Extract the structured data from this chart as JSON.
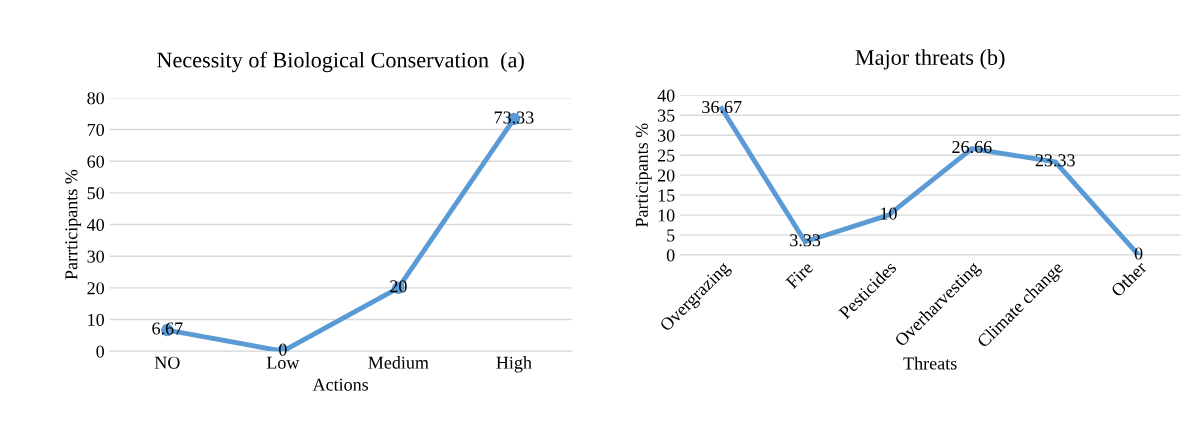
{
  "chart_data": [
    {
      "type": "line",
      "title": "Necessity of Biological Conservation  (a)",
      "xlabel": "Actions",
      "ylabel": "Parrticipants %",
      "categories": [
        "NO",
        "Low",
        "Medium",
        "High"
      ],
      "series": [
        {
          "color": "#5b9bd5",
          "values": [
            6.67,
            0,
            20,
            73.33
          ]
        }
      ],
      "ylim": [
        0,
        80
      ],
      "yticks": [
        0,
        10,
        20,
        30,
        40,
        50,
        60,
        70,
        80
      ],
      "grid": "y",
      "marker": "circle",
      "data_labels": true
    },
    {
      "type": "line",
      "title": "Major threats (b)",
      "xlabel": "Threats",
      "ylabel": "Participants %",
      "categories": [
        "Overgrazing",
        "Fire",
        "Pesticides",
        "Overharvesting",
        "Climate change",
        "Other"
      ],
      "series": [
        {
          "color": "#5b9bd5",
          "values": [
            36.67,
            3.33,
            10,
            26.66,
            23.33,
            0
          ]
        }
      ],
      "ylim": [
        0,
        40
      ],
      "yticks": [
        0,
        5,
        10,
        15,
        20,
        25,
        30,
        35,
        40
      ],
      "grid": "y",
      "data_labels": true
    }
  ]
}
